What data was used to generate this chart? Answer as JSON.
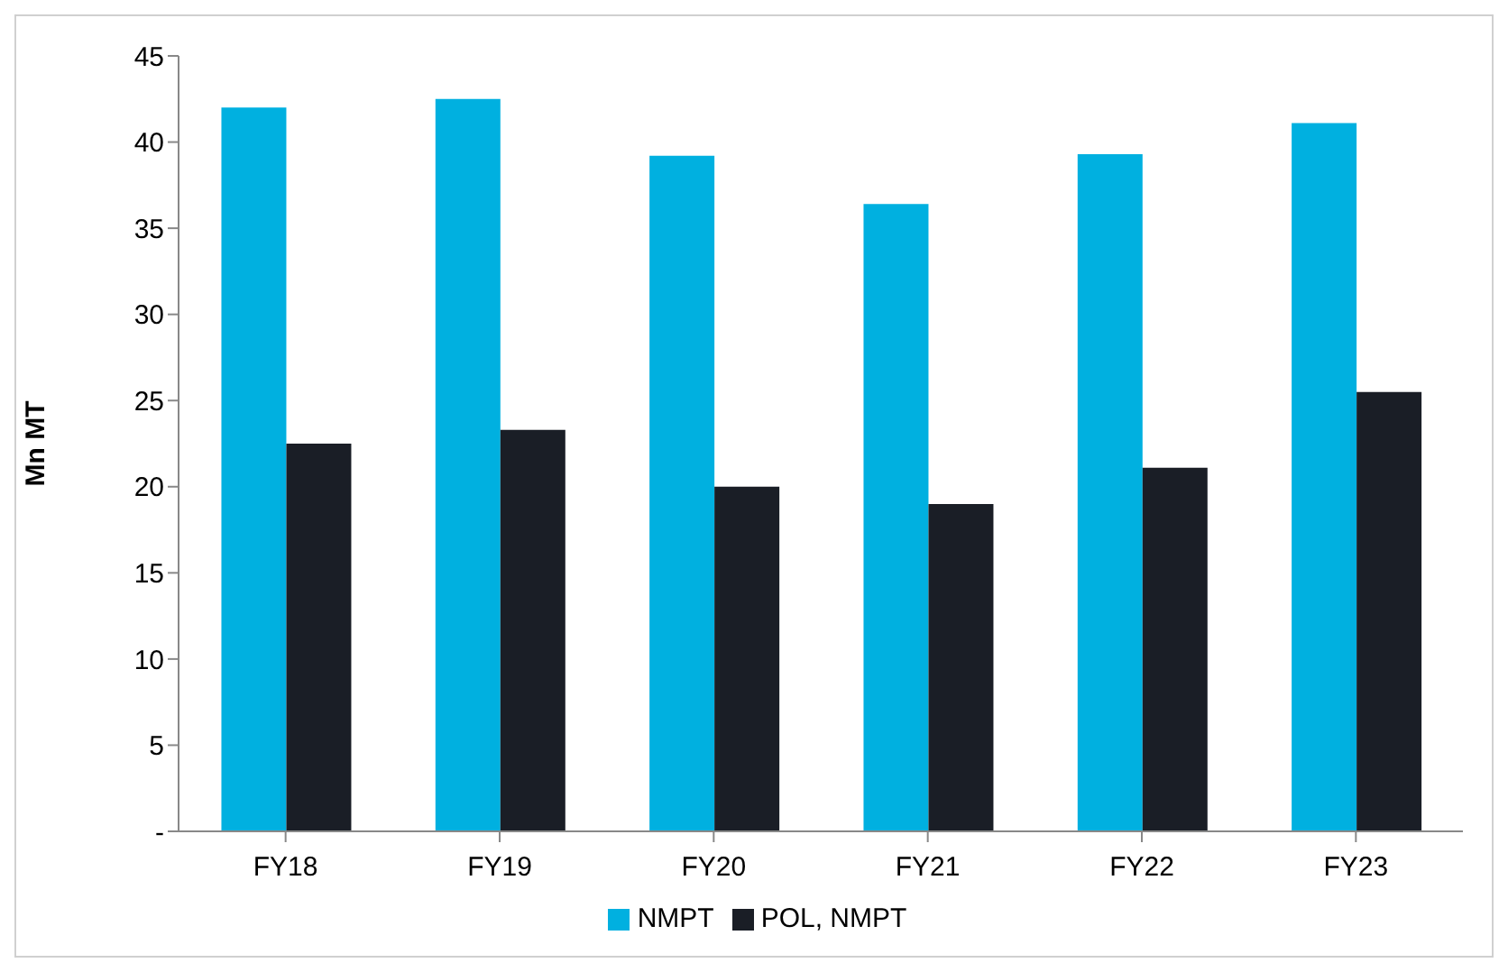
{
  "chart_data": {
    "type": "bar",
    "ylabel": "Mn MT",
    "categories": [
      "FY18",
      "FY19",
      "FY20",
      "FY21",
      "FY22",
      "FY23"
    ],
    "series": [
      {
        "name": "NMPT",
        "color": "#00b0e0",
        "values": [
          42.0,
          42.5,
          39.2,
          36.4,
          39.3,
          41.1
        ]
      },
      {
        "name": "POL, NMPT",
        "color": "#1a1e26",
        "values": [
          22.5,
          23.3,
          20.0,
          19.0,
          21.1,
          25.5
        ]
      }
    ],
    "ylim": [
      0,
      45
    ],
    "yticks": [
      {
        "value": 0,
        "label": "-"
      },
      5,
      10,
      15,
      20,
      25,
      30,
      35,
      40,
      45
    ],
    "grid": false,
    "legend": "bottom"
  }
}
